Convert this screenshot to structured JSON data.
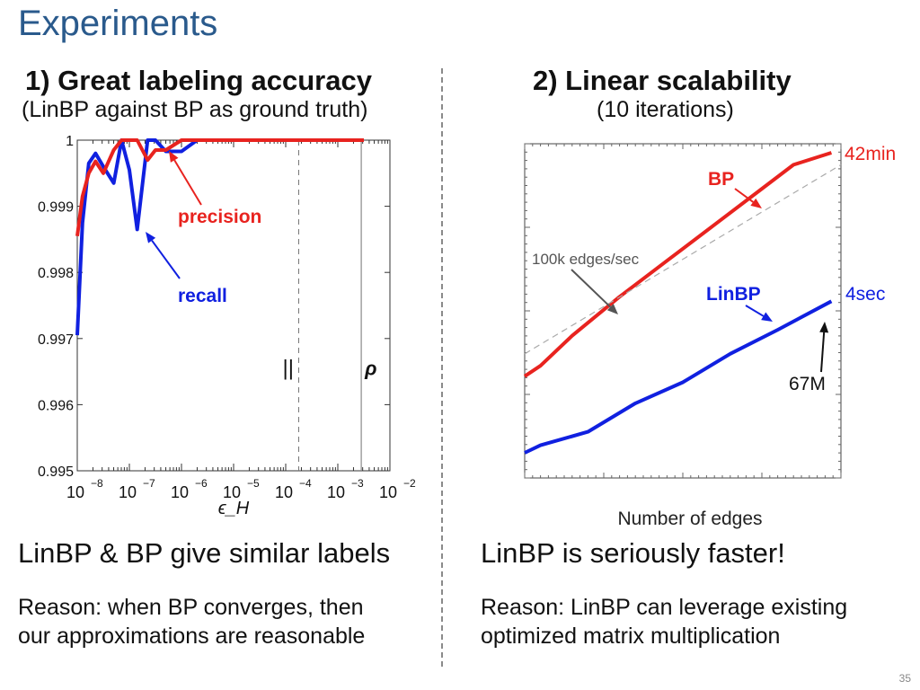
{
  "title": "Experiments",
  "left": {
    "heading": "1) Great labeling accuracy",
    "subheading": "(LinBP against BP as ground truth)",
    "statement": "LinBP & BP give similar labels",
    "reason_line1": "Reason: when BP converges, then",
    "reason_line2": "our approximations are reasonable"
  },
  "right": {
    "heading": "2) Linear scalability",
    "subheading": "(10 iterations)",
    "statement": "LinBP is seriously faster!",
    "reason_line1": "Reason: LinBP can leverage existing",
    "reason_line2": "optimized matrix multiplication"
  },
  "page_number": "35",
  "colors": {
    "title": "#2a5a8c",
    "red": "#e8231f",
    "blue": "#1020e0",
    "annotation": "#555555"
  },
  "chart_data": [
    {
      "type": "line",
      "title": "",
      "xlabel": "ϵ_H",
      "ylabel": "",
      "x_scale": "log",
      "xlim_exp": [
        -8,
        -2
      ],
      "ylim": [
        0.995,
        1.0
      ],
      "x_tick_labels": [
        "-8",
        "-7",
        "-6",
        "-5",
        "-4",
        "-3",
        "-2"
      ],
      "y_tick_labels": [
        "1",
        "0.999",
        "0.998",
        "0.997",
        "0.996",
        "0.995"
      ],
      "series": [
        {
          "name": "precision",
          "color": "#e8231f",
          "x_exp": [
            -8.0,
            -7.9,
            -7.78,
            -7.65,
            -7.5,
            -7.3,
            -7.15,
            -7.0,
            -6.85,
            -6.65,
            -6.5,
            -6.3,
            -6.0,
            -5.0,
            -4.0,
            -3.0,
            -2.5
          ],
          "y": [
            0.99855,
            0.99915,
            0.9995,
            0.99968,
            0.9995,
            0.99985,
            1.0,
            1.0,
            1.0,
            0.9997,
            0.99985,
            0.99985,
            1.0,
            1.0,
            1.0,
            1.0,
            1.0
          ]
        },
        {
          "name": "recall",
          "color": "#1020e0",
          "x_exp": [
            -8.0,
            -7.9,
            -7.78,
            -7.65,
            -7.5,
            -7.3,
            -7.15,
            -7.0,
            -6.85,
            -6.65,
            -6.5,
            -6.3,
            -6.0,
            -5.7,
            -5.0,
            -4.0,
            -3.0,
            -2.5
          ],
          "y": [
            0.99705,
            0.99875,
            0.99965,
            0.9998,
            0.9996,
            0.99935,
            1.0,
            0.99955,
            0.99865,
            1.0,
            1.0,
            0.99983,
            0.99983,
            1.0,
            1.0,
            1.0,
            1.0,
            1.0
          ]
        }
      ],
      "annotations": [
        {
          "text": "precision",
          "color": "#e8231f"
        },
        {
          "text": "recall",
          "color": "#1020e0"
        },
        {
          "text": "||",
          "x_exp": -3.75
        },
        {
          "text": "ρ",
          "x_exp": -2.55
        }
      ]
    },
    {
      "type": "line",
      "title": "",
      "xlabel": "Number of edges",
      "ylabel": "",
      "x_scale": "log",
      "y_scale": "log",
      "series": [
        {
          "name": "BP",
          "color": "#e8231f",
          "x_frac": [
            0.0,
            0.05,
            0.15,
            0.3,
            0.45,
            0.6,
            0.75,
            0.85,
            0.97
          ],
          "y_frac": [
            0.255,
            0.29,
            0.39,
            0.52,
            0.64,
            0.76,
            0.88,
            0.96,
            1.0
          ]
        },
        {
          "name": "LinBP",
          "color": "#1020e0",
          "x_frac": [
            0.0,
            0.05,
            0.2,
            0.35,
            0.5,
            0.65,
            0.8,
            0.97
          ],
          "y_frac": [
            0.0,
            0.025,
            0.07,
            0.165,
            0.235,
            0.33,
            0.41,
            0.505
          ]
        },
        {
          "name": "100k edges/sec",
          "color": "#aaaaaa",
          "dashed": true,
          "x_frac": [
            0.0,
            1.0
          ],
          "y_frac": [
            0.33,
            0.96
          ]
        }
      ],
      "annotations": [
        {
          "text": "42min",
          "color": "#e8231f"
        },
        {
          "text": "BP",
          "color": "#e8231f"
        },
        {
          "text": "100k edges/sec",
          "color": "#555555"
        },
        {
          "text": "LinBP",
          "color": "#1020e0"
        },
        {
          "text": "4sec",
          "color": "#1020e0"
        },
        {
          "text": "67M",
          "color": "#111111"
        }
      ]
    }
  ]
}
